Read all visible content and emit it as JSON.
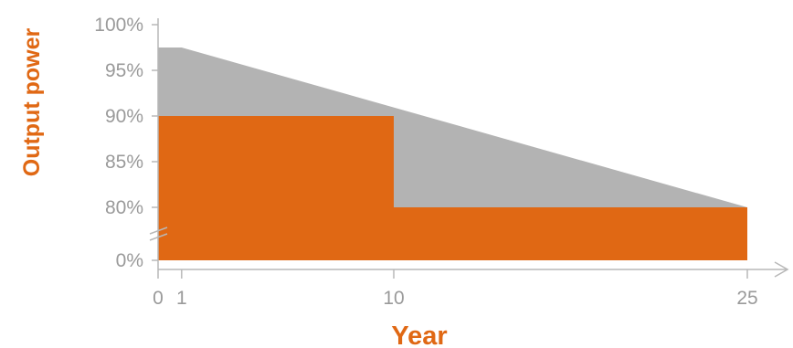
{
  "chart_data": {
    "type": "area",
    "title": "",
    "xlabel": "Year",
    "ylabel": "Output power",
    "x_ticks": [
      {
        "value": 0,
        "label": "0"
      },
      {
        "value": 1,
        "label": "1"
      },
      {
        "value": 10,
        "label": "10"
      },
      {
        "value": 25,
        "label": "25"
      }
    ],
    "y_ticks": [
      {
        "value": 100,
        "label": "100%"
      },
      {
        "value": 95,
        "label": "95%"
      },
      {
        "value": 90,
        "label": "90%"
      },
      {
        "value": 85,
        "label": "85%"
      },
      {
        "value": 80,
        "label": "80%"
      },
      {
        "value": 0,
        "label": "0%"
      }
    ],
    "xlim": [
      0,
      25
    ],
    "ylim": [
      0,
      100
    ],
    "y_axis_break": true,
    "grid": false,
    "series": [
      {
        "kind": "linear-warranty",
        "color": "#b3b3b3",
        "x": [
          0,
          1,
          25
        ],
        "y": [
          97.5,
          97.5,
          80
        ]
      },
      {
        "kind": "step-warranty",
        "color": "#e06814",
        "x": [
          0,
          10,
          10,
          25
        ],
        "y": [
          90,
          90,
          80,
          80
        ]
      }
    ],
    "colors": {
      "axis": "#b8b8b8",
      "label": "#e06814",
      "tick_text": "#9a9a9a"
    }
  }
}
